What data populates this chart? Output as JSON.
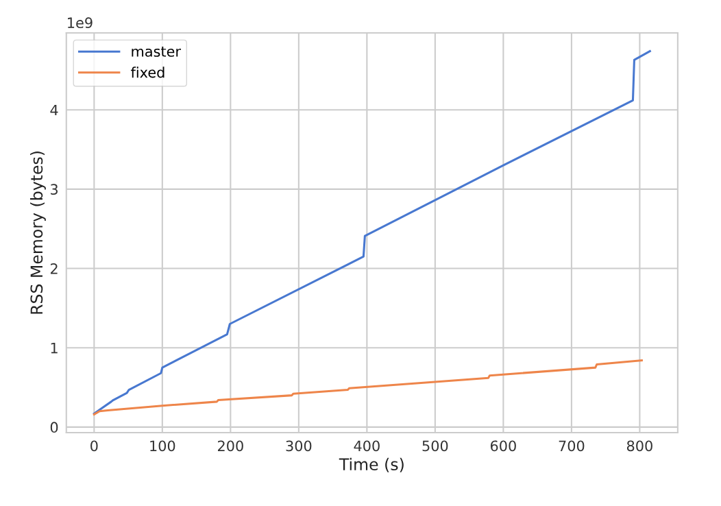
{
  "chart_data": {
    "type": "line",
    "xlabel": "Time (s)",
    "ylabel": "RSS Memory (bytes)",
    "annotations": [
      "1e9"
    ],
    "series": [
      {
        "name": "master",
        "color": "#4878d0",
        "x": [
          0,
          25,
          28,
          48,
          51,
          98,
          100,
          195,
          199,
          395,
          397,
          600,
          790,
          792,
          815
        ],
        "values": [
          0.17,
          0.32,
          0.34,
          0.43,
          0.47,
          0.68,
          0.75,
          1.17,
          1.3,
          2.15,
          2.41,
          3.3,
          4.12,
          4.63,
          4.74
        ]
      },
      {
        "name": "fixed",
        "color": "#ee854a",
        "x": [
          0,
          8,
          20,
          100,
          180,
          182,
          290,
          292,
          372,
          374,
          578,
          580,
          735,
          737,
          803
        ],
        "values": [
          0.16,
          0.2,
          0.21,
          0.27,
          0.32,
          0.34,
          0.4,
          0.42,
          0.47,
          0.49,
          0.62,
          0.65,
          0.75,
          0.79,
          0.84
        ]
      }
    ],
    "xlim": [
      -40.75,
      855.75
    ],
    "xticks": [
      0,
      100,
      200,
      300,
      400,
      500,
      600,
      700,
      800
    ],
    "ylim": [
      -0.07,
      4.97
    ],
    "yticks": [
      0,
      1,
      2,
      3,
      4
    ],
    "grid": true,
    "legend": "top left",
    "marker": "none",
    "line_style": "solid"
  }
}
